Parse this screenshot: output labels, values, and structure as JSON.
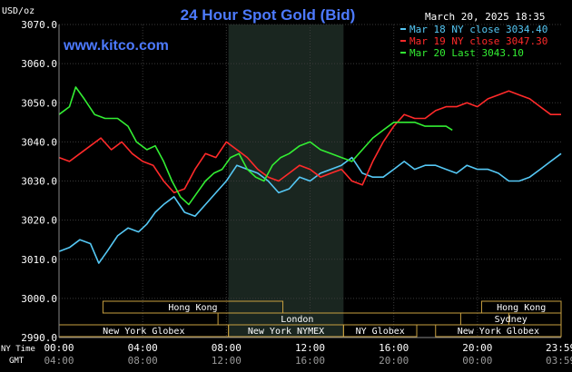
{
  "chart_data": {
    "type": "line",
    "title": "24 Hour Spot Gold (Bid)",
    "site": "www.kitco.com",
    "date_stamp": "March 20, 2025 18:35",
    "unit_label": "USD/oz",
    "y_ticks": [
      "3070.0",
      "3060.0",
      "3050.0",
      "3040.0",
      "3030.0",
      "3020.0",
      "3010.0",
      "3000.0",
      "2990.0"
    ],
    "ylim": [
      2990,
      3070
    ],
    "xlim": [
      0,
      24
    ],
    "grid": true,
    "legend_position": "top-right",
    "x_axis": {
      "ny_label": "NY Time",
      "gmt_label": "GMT",
      "ny_ticks": [
        {
          "h": 0,
          "label": "00:00"
        },
        {
          "h": 4,
          "label": "04:00"
        },
        {
          "h": 8,
          "label": "08:00"
        },
        {
          "h": 12,
          "label": "12:00"
        },
        {
          "h": 16,
          "label": "16:00"
        },
        {
          "h": 20,
          "label": "20:00"
        },
        {
          "h": 23.98,
          "label": "23:59"
        }
      ],
      "gmt_ticks": [
        {
          "h": 0,
          "label": "04:00"
        },
        {
          "h": 4,
          "label": "08:00"
        },
        {
          "h": 8,
          "label": "12:00"
        },
        {
          "h": 12,
          "label": "16:00"
        },
        {
          "h": 16,
          "label": "20:00"
        },
        {
          "h": 20,
          "label": "00:00"
        },
        {
          "h": 23.98,
          "label": "03:59"
        }
      ]
    },
    "shaded_range": [
      8.1,
      13.6
    ],
    "series": [
      {
        "name": "Mar 18 NY close 3034.40",
        "color": "#55c8f5",
        "x": [
          0,
          0.5,
          1,
          1.5,
          1.9,
          2.3,
          2.8,
          3.3,
          3.8,
          4.2,
          4.6,
          5,
          5.5,
          6,
          6.5,
          7,
          7.5,
          8,
          8.5,
          9,
          9.5,
          10,
          10.5,
          11,
          11.5,
          12,
          12.5,
          13,
          13.5,
          14,
          14.5,
          15,
          15.5,
          16,
          16.5,
          17,
          17.5,
          18,
          18.5,
          19,
          19.5,
          20,
          20.5,
          21,
          21.5,
          22,
          22.5,
          23,
          23.5,
          24
        ],
        "values": [
          3012,
          3013,
          3015,
          3014,
          3009,
          3012,
          3016,
          3018,
          3017,
          3019,
          3022,
          3024,
          3026,
          3022,
          3021,
          3024,
          3027,
          3030,
          3034,
          3033,
          3032,
          3030,
          3027,
          3028,
          3031,
          3030,
          3032,
          3033,
          3034,
          3036,
          3032,
          3031,
          3031,
          3033,
          3035,
          3033,
          3034,
          3034,
          3033,
          3032,
          3034,
          3033,
          3033,
          3032,
          3030,
          3030,
          3031,
          3033,
          3035,
          3037
        ]
      },
      {
        "name": "Mar 19 NY close 3047.30",
        "color": "#ff2a2a",
        "x": [
          0,
          0.5,
          1,
          1.5,
          2,
          2.5,
          3,
          3.5,
          4,
          4.5,
          5,
          5.5,
          6,
          6.5,
          7,
          7.5,
          8,
          8.5,
          9,
          9.5,
          10,
          10.5,
          11,
          11.5,
          12,
          12.5,
          13,
          13.5,
          14,
          14.5,
          15,
          15.5,
          16,
          16.5,
          17,
          17.5,
          18,
          18.5,
          19,
          19.5,
          20,
          20.5,
          21,
          21.5,
          22,
          22.5,
          23,
          23.5,
          24
        ],
        "values": [
          3036,
          3035,
          3037,
          3039,
          3041,
          3038,
          3040,
          3037,
          3035,
          3034,
          3030,
          3027,
          3028,
          3033,
          3037,
          3036,
          3040,
          3038,
          3036,
          3033,
          3031,
          3030,
          3032,
          3034,
          3033,
          3031,
          3032,
          3033,
          3030,
          3029,
          3035,
          3040,
          3044,
          3047,
          3046,
          3046,
          3048,
          3049,
          3049,
          3050,
          3049,
          3051,
          3052,
          3053,
          3052,
          3051,
          3049,
          3047,
          3047
        ]
      },
      {
        "name": "Mar 20 Last 3043.10",
        "color": "#33ee33",
        "x": [
          0,
          0.5,
          0.8,
          1.2,
          1.7,
          2.2,
          2.8,
          3.3,
          3.7,
          4.2,
          4.6,
          5,
          5.4,
          5.8,
          6.2,
          6.6,
          7,
          7.4,
          7.8,
          8.2,
          8.6,
          9,
          9.4,
          9.8,
          10.2,
          10.6,
          11,
          11.5,
          12,
          12.5,
          13,
          13.5,
          14,
          14.5,
          15,
          15.5,
          16,
          16.5,
          17,
          17.5,
          18,
          18.5,
          18.8
        ],
        "values": [
          3047,
          3049,
          3054,
          3051,
          3047,
          3046,
          3046,
          3044,
          3040,
          3038,
          3039,
          3035,
          3030,
          3026,
          3024,
          3027,
          3030,
          3032,
          3033,
          3036,
          3037,
          3033,
          3031,
          3030,
          3034,
          3036,
          3037,
          3039,
          3040,
          3038,
          3037,
          3036,
          3035,
          3038,
          3041,
          3043,
          3045,
          3045,
          3045,
          3044,
          3044,
          3044,
          3043
        ]
      }
    ],
    "sessions": [
      {
        "label": "Hong Kong",
        "row": 0,
        "start": 2.1,
        "end": 10.7
      },
      {
        "label": "Hong Kong",
        "row": 0,
        "start": 20.2,
        "end": 24
      },
      {
        "label": "London",
        "row": 1,
        "start": 0,
        "end": 21.5,
        "box": [
          7.6,
          21.5
        ]
      },
      {
        "label": "Sydney",
        "row": 1,
        "start": 19.2,
        "end": 24
      },
      {
        "label": "New York Globex",
        "row": 2,
        "start": 0,
        "end": 8.1
      },
      {
        "label": "New York NYMEX",
        "row": 2,
        "start": 8.1,
        "end": 13.6
      },
      {
        "label": "NY Globex",
        "row": 2,
        "start": 13.6,
        "end": 17.1
      },
      {
        "label": "New York Globex",
        "row": 2,
        "start": 18.0,
        "end": 24
      }
    ]
  }
}
